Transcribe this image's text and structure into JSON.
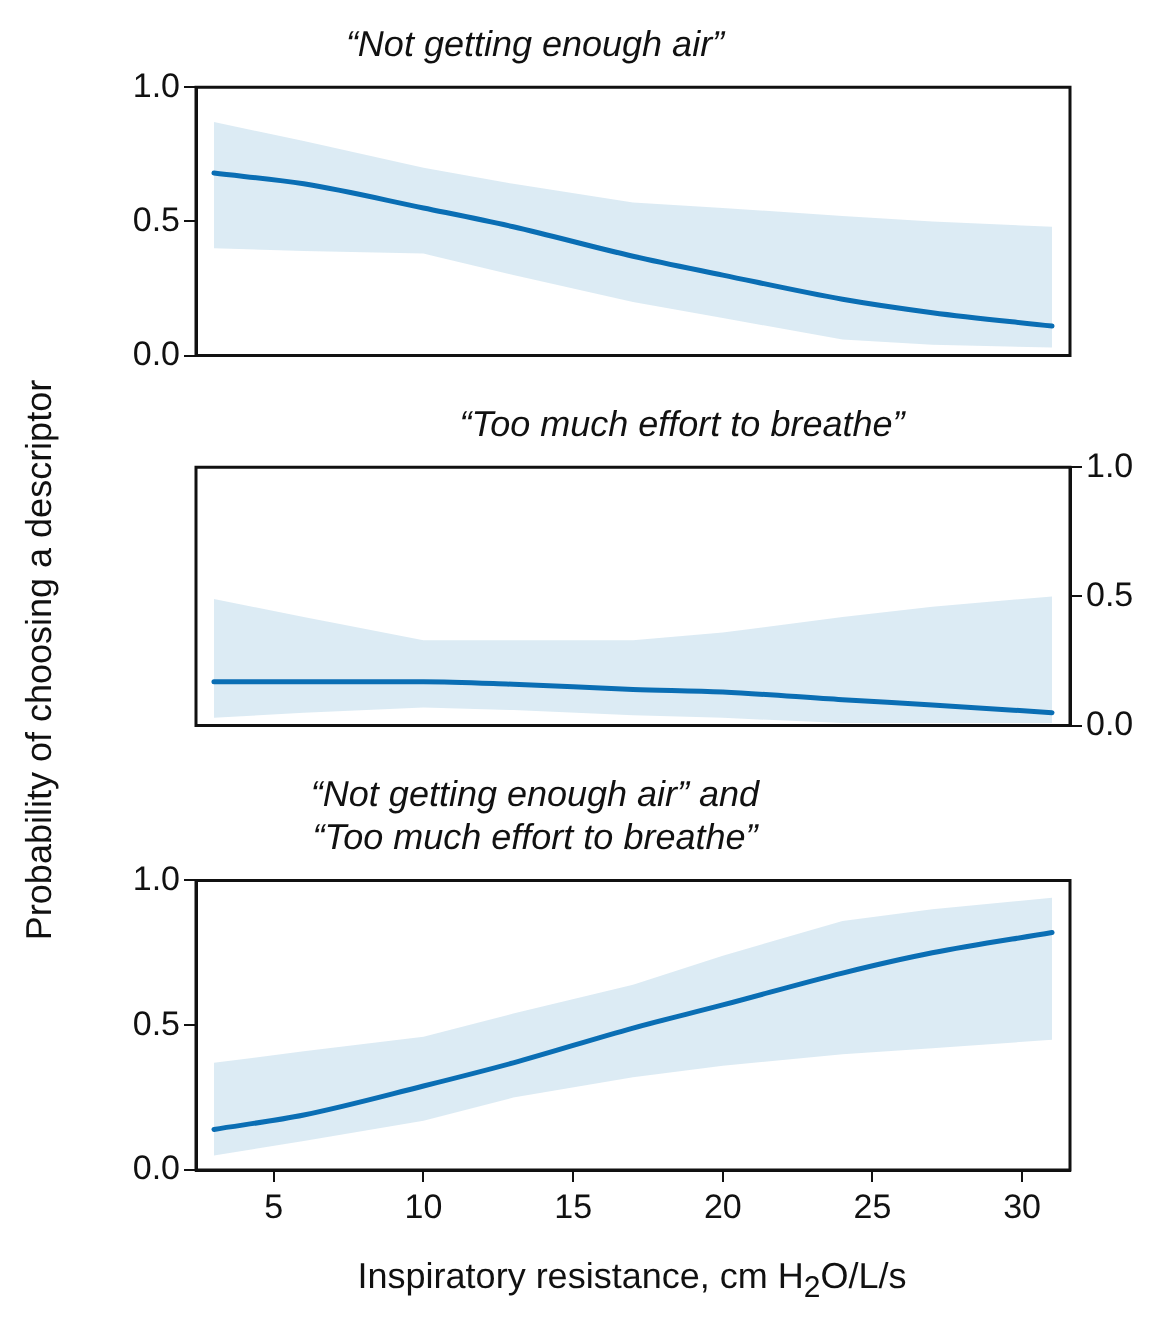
{
  "chart_data": [
    {
      "type": "line",
      "title": "“Not getting enough air”",
      "xlim": [
        2.4,
        31.6
      ],
      "ylim": [
        0,
        1
      ],
      "yticks": [
        {
          "value": 0,
          "label": "0.0"
        },
        {
          "value": 0.5,
          "label": "0.5"
        },
        {
          "value": 1,
          "label": "1.0"
        }
      ],
      "tick_labels": "y",
      "grid": false,
      "x": [
        3,
        6,
        10,
        13,
        17,
        20,
        24,
        27,
        31
      ],
      "series": [
        {
          "color": "#0a6eb4",
          "values": [
            0.68,
            0.64,
            0.55,
            0.48,
            0.37,
            0.3,
            0.21,
            0.16,
            0.11
          ],
          "lower": [
            0.4,
            0.39,
            0.38,
            0.3,
            0.2,
            0.14,
            0.06,
            0.04,
            0.03
          ],
          "upper": [
            0.87,
            0.8,
            0.7,
            0.64,
            0.57,
            0.55,
            0.52,
            0.5,
            0.48
          ]
        }
      ]
    },
    {
      "type": "line",
      "title": "“Too much effort to breathe”",
      "ylabel": "Probability of choosing a descriptor",
      "xlim": [
        2.4,
        31.6
      ],
      "y2lim": [
        0,
        1
      ],
      "y2ticks": [
        {
          "value": 0,
          "label": "0.0"
        },
        {
          "value": 0.5,
          "label": "0.5"
        },
        {
          "value": 1,
          "label": "1.0"
        }
      ],
      "tick_labels": "y",
      "grid": false,
      "x": [
        3,
        6,
        10,
        13,
        17,
        20,
        24,
        27,
        31
      ],
      "series": [
        {
          "color": "#0a6eb4",
          "axis": "y2",
          "values": [
            0.17,
            0.17,
            0.17,
            0.16,
            0.14,
            0.13,
            0.1,
            0.08,
            0.05
          ],
          "lower": [
            0.03,
            0.05,
            0.07,
            0.06,
            0.04,
            0.03,
            0.01,
            0.01,
            0.01
          ],
          "upper": [
            0.49,
            0.42,
            0.33,
            0.33,
            0.33,
            0.36,
            0.42,
            0.46,
            0.5
          ]
        }
      ]
    },
    {
      "type": "line",
      "title": "“Not getting enough air” and\n“Too much effort to breathe”",
      "xlabel": "Inspiratory resistance, cm H$_{2}$O/L/s",
      "xlim": [
        2.4,
        31.6
      ],
      "xticks": [
        5,
        10,
        15,
        20,
        25,
        30
      ],
      "ylim": [
        0,
        1
      ],
      "yticks": [
        {
          "value": 0,
          "label": "0.0"
        },
        {
          "value": 0.5,
          "label": "0.5"
        },
        {
          "value": 1,
          "label": "1.0"
        }
      ],
      "grid": false,
      "x": [
        3,
        6,
        10,
        13,
        17,
        20,
        24,
        27,
        31
      ],
      "series": [
        {
          "color": "#0a6eb4",
          "values": [
            0.14,
            0.19,
            0.29,
            0.37,
            0.49,
            0.57,
            0.68,
            0.75,
            0.82
          ],
          "lower": [
            0.05,
            0.1,
            0.17,
            0.25,
            0.32,
            0.36,
            0.4,
            0.42,
            0.45
          ],
          "upper": [
            0.37,
            0.41,
            0.46,
            0.54,
            0.64,
            0.74,
            0.86,
            0.9,
            0.94
          ]
        }
      ]
    }
  ]
}
